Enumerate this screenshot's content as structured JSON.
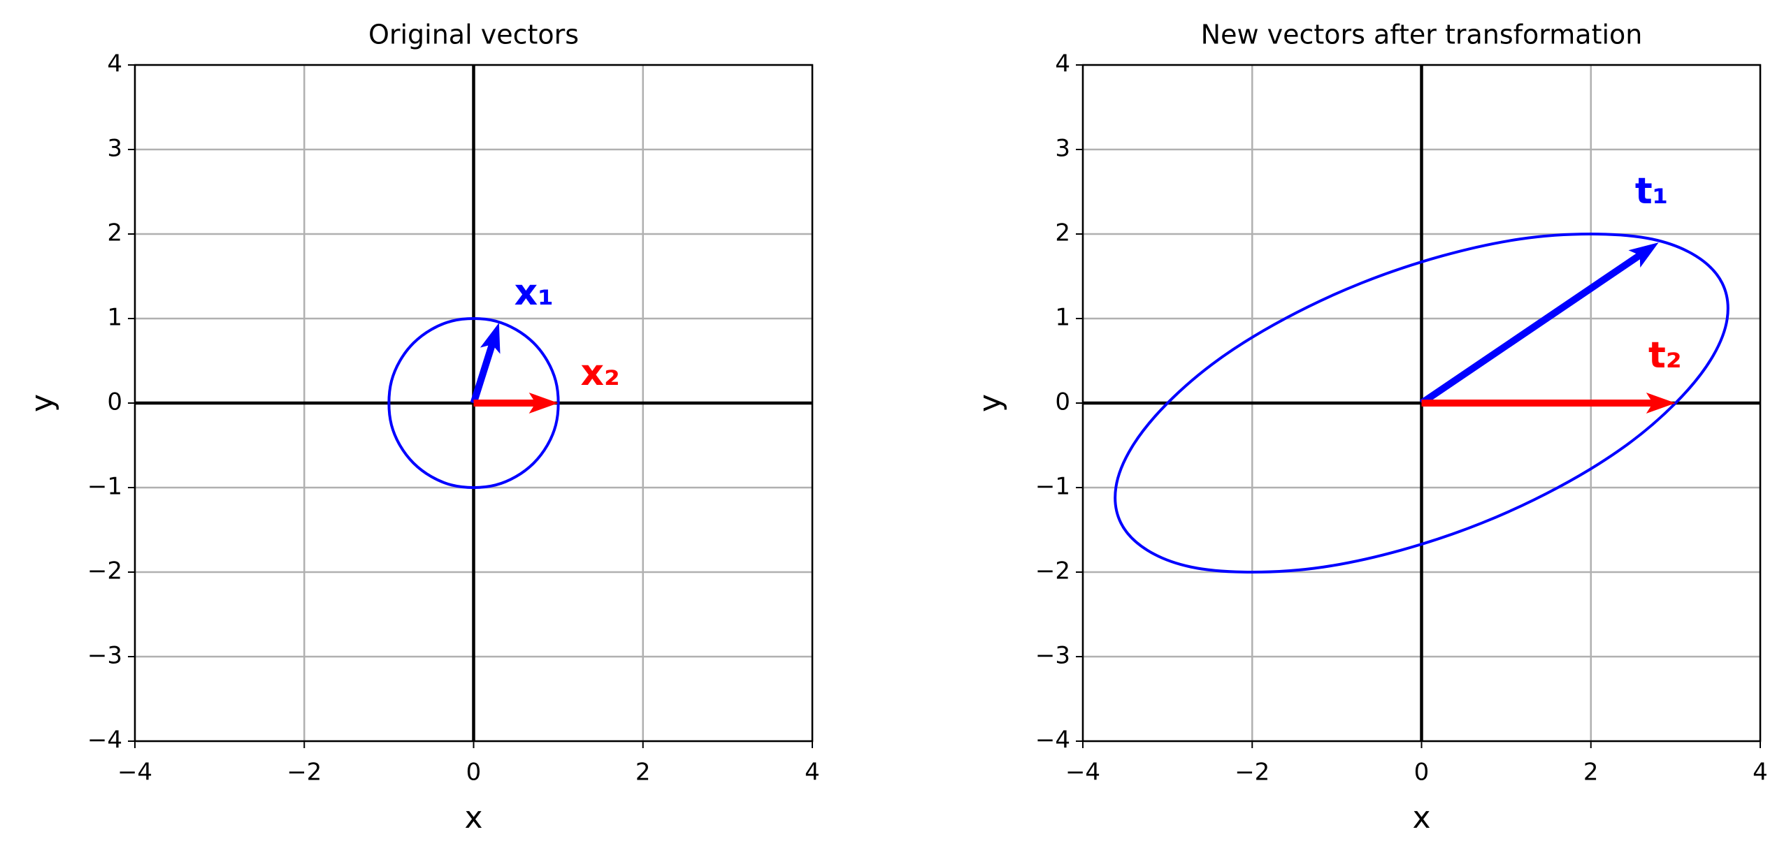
{
  "chart_data": [
    {
      "type": "vector",
      "title": "Original vectors",
      "xlabel": "x",
      "ylabel": "y",
      "xlim": [
        -4,
        4
      ],
      "ylim": [
        -4,
        4
      ],
      "xticks": [
        {
          "value": -4,
          "label": "−4"
        },
        {
          "value": -2,
          "label": "−2"
        },
        0,
        2,
        4
      ],
      "yticks": [
        {
          "value": -4,
          "label": "−4"
        },
        {
          "value": -3,
          "label": "−3"
        },
        {
          "value": -2,
          "label": "−2"
        },
        {
          "value": -1,
          "label": "−1"
        },
        0,
        1,
        2,
        3,
        4
      ],
      "grid": true,
      "curve": {
        "color": "#0000ff",
        "x": [
          1,
          0.97,
          0.87,
          0.71,
          0.5,
          0.26,
          0,
          -0.26,
          -0.5,
          -0.71,
          -0.87,
          -0.97,
          -1,
          -0.97,
          -0.87,
          -0.71,
          -0.5,
          -0.26,
          0,
          0.26,
          0.5,
          0.71,
          0.87,
          0.97
        ],
        "y": [
          0,
          0.26,
          0.5,
          0.71,
          0.87,
          0.97,
          1,
          0.97,
          0.87,
          0.71,
          0.5,
          0.26,
          0,
          -0.26,
          -0.5,
          -0.71,
          -0.87,
          -0.97,
          -1,
          -0.97,
          -0.87,
          -0.71,
          -0.5,
          -0.26
        ]
      },
      "series": [
        {
          "name": "x₁",
          "color": "#0000ff",
          "x": 0.3,
          "y": 0.95
        },
        {
          "name": "x₂",
          "color": "#ff0000",
          "x": 1,
          "y": 0
        }
      ]
    },
    {
      "type": "vector",
      "title": "New vectors after transformation",
      "xlabel": "x",
      "ylabel": "y",
      "xlim": [
        -4,
        4
      ],
      "ylim": [
        -4,
        4
      ],
      "xticks": [
        {
          "value": -4,
          "label": "−4"
        },
        {
          "value": -2,
          "label": "−2"
        },
        0,
        2,
        4
      ],
      "yticks": [
        {
          "value": -4,
          "label": "−4"
        },
        {
          "value": -3,
          "label": "−3"
        },
        {
          "value": -2,
          "label": "−2"
        },
        {
          "value": -1,
          "label": "−1"
        },
        0,
        1,
        2,
        3,
        4
      ],
      "grid": true,
      "curve": {
        "color": "#0000ff",
        "x": [
          3,
          3.42,
          3.61,
          3.55,
          3.24,
          2.72,
          2,
          1.16,
          0.24,
          -0.71,
          -1.61,
          -2.39,
          -3,
          -3.42,
          -3.61,
          -3.55,
          -3.24,
          -2.72,
          -2,
          -1.16,
          -0.24,
          0.71,
          1.61,
          2.39
        ],
        "y": [
          0,
          0.52,
          1,
          1.42,
          1.74,
          1.94,
          2,
          1.94,
          1.74,
          1.42,
          1,
          0.52,
          0,
          -0.52,
          -1,
          -1.42,
          -1.74,
          -1.94,
          -2,
          -1.94,
          -1.74,
          -1.42,
          -1,
          -0.52
        ]
      },
      "series": [
        {
          "name": "t₁",
          "color": "#0000ff",
          "x": 2.8,
          "y": 1.9
        },
        {
          "name": "t₂",
          "color": "#ff0000",
          "x": 3,
          "y": 0
        }
      ]
    }
  ]
}
